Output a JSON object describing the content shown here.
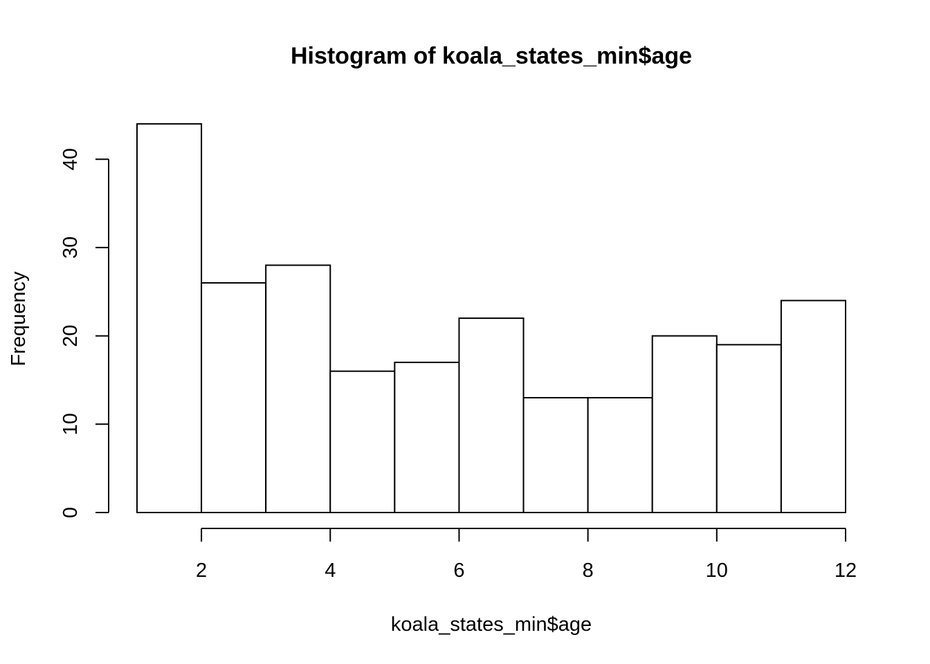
{
  "chart_data": {
    "type": "bar",
    "title": "Histogram of koala_states_min$age",
    "xlabel": "koala_states_min$age",
    "ylabel": "Frequency",
    "bins": [
      {
        "start": 1,
        "end": 2,
        "count": 44
      },
      {
        "start": 2,
        "end": 3,
        "count": 26
      },
      {
        "start": 3,
        "end": 4,
        "count": 28
      },
      {
        "start": 4,
        "end": 5,
        "count": 16
      },
      {
        "start": 5,
        "end": 6,
        "count": 17
      },
      {
        "start": 6,
        "end": 7,
        "count": 22
      },
      {
        "start": 7,
        "end": 8,
        "count": 13
      },
      {
        "start": 8,
        "end": 9,
        "count": 13
      },
      {
        "start": 9,
        "end": 10,
        "count": 20
      },
      {
        "start": 10,
        "end": 11,
        "count": 19
      },
      {
        "start": 11,
        "end": 12,
        "count": 24
      }
    ],
    "xticks": [
      2,
      4,
      6,
      8,
      10,
      12
    ],
    "yticks": [
      0,
      10,
      20,
      30,
      40
    ],
    "xlim": [
      1,
      12
    ],
    "ylim": [
      0,
      44
    ],
    "grid": false,
    "legend": "none"
  }
}
